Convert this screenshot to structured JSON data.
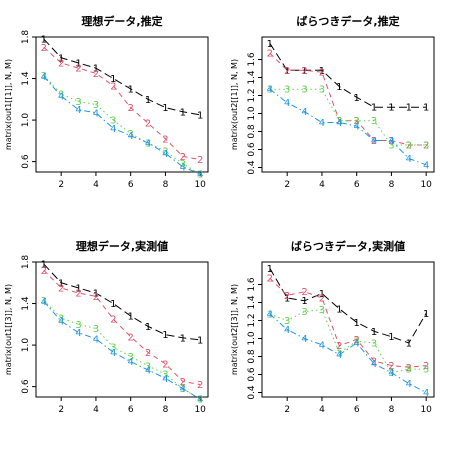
{
  "chart_data": [
    {
      "type": "line",
      "title": "理想データ,推定",
      "ylabel": "matrix(out1[[1]], N, M)",
      "xlabel": "",
      "x": [
        1,
        2,
        3,
        4,
        5,
        6,
        7,
        8,
        9,
        10
      ],
      "xticks": [
        2,
        4,
        6,
        8,
        10
      ],
      "yticks": [
        0.6,
        1.0,
        1.4,
        1.8
      ],
      "ylim": [
        0.5,
        1.8
      ],
      "series": [
        {
          "marker": "1",
          "color": "#000000",
          "dash": "8,4",
          "values": [
            1.78,
            1.6,
            1.55,
            1.5,
            1.4,
            1.3,
            1.2,
            1.12,
            1.08,
            1.05
          ]
        },
        {
          "marker": "2",
          "color": "#DF536B",
          "dash": "5,4",
          "values": [
            1.7,
            1.55,
            1.5,
            1.45,
            1.33,
            1.12,
            0.97,
            0.82,
            0.65,
            0.62
          ]
        },
        {
          "marker": "3",
          "color": "#61D04F",
          "dash": "1.5,3",
          "values": [
            1.43,
            1.25,
            1.18,
            1.15,
            1.0,
            0.87,
            0.78,
            0.7,
            0.58,
            0.48
          ]
        },
        {
          "marker": "4",
          "color": "#2297E6",
          "dash": "6,3,1.5,3",
          "values": [
            1.42,
            1.23,
            1.1,
            1.07,
            0.92,
            0.85,
            0.78,
            0.68,
            0.55,
            0.48
          ]
        }
      ]
    },
    {
      "type": "line",
      "title": "ばらつきデータ,推定",
      "ylabel": "matrix(out2[[1]], N, M)",
      "xlabel": "",
      "x": [
        1,
        2,
        3,
        4,
        5,
        6,
        7,
        8,
        9,
        10
      ],
      "xticks": [
        2,
        4,
        6,
        8,
        10
      ],
      "yticks": [
        0.4,
        0.6,
        0.8,
        1.0,
        1.2,
        1.4,
        1.6
      ],
      "ylim": [
        0.35,
        1.85
      ],
      "series": [
        {
          "marker": "1",
          "color": "#000000",
          "dash": "8,4",
          "values": [
            1.78,
            1.48,
            1.48,
            1.48,
            1.3,
            1.18,
            1.07,
            1.07,
            1.07,
            1.07
          ]
        },
        {
          "marker": "2",
          "color": "#DF536B",
          "dash": "5,4",
          "values": [
            1.67,
            1.48,
            1.48,
            1.46,
            0.92,
            0.92,
            0.7,
            0.7,
            0.65,
            0.65
          ]
        },
        {
          "marker": "3",
          "color": "#61D04F",
          "dash": "1.5,3",
          "values": [
            1.27,
            1.27,
            1.27,
            1.27,
            0.92,
            0.92,
            0.92,
            0.65,
            0.65,
            0.65
          ]
        },
        {
          "marker": "4",
          "color": "#2297E6",
          "dash": "6,3,1.5,3",
          "values": [
            1.27,
            1.12,
            1.02,
            0.9,
            0.9,
            0.86,
            0.7,
            0.7,
            0.5,
            0.43
          ]
        }
      ]
    },
    {
      "type": "line",
      "title": "理想データ,実測値",
      "ylabel": "matrix(out1[[3]], N, M)",
      "xlabel": "",
      "x": [
        1,
        2,
        3,
        4,
        5,
        6,
        7,
        8,
        9,
        10
      ],
      "xticks": [
        2,
        4,
        6,
        8,
        10
      ],
      "yticks": [
        0.6,
        1.0,
        1.4,
        1.8
      ],
      "ylim": [
        0.5,
        1.8
      ],
      "series": [
        {
          "marker": "1",
          "color": "#000000",
          "dash": "8,4",
          "values": [
            1.78,
            1.6,
            1.55,
            1.5,
            1.4,
            1.28,
            1.18,
            1.1,
            1.07,
            1.05
          ]
        },
        {
          "marker": "2",
          "color": "#DF536B",
          "dash": "5,4",
          "values": [
            1.72,
            1.55,
            1.5,
            1.47,
            1.25,
            1.08,
            0.93,
            0.82,
            0.65,
            0.62
          ]
        },
        {
          "marker": "3",
          "color": "#61D04F",
          "dash": "1.5,3",
          "values": [
            1.43,
            1.26,
            1.2,
            1.16,
            0.98,
            0.89,
            0.8,
            0.72,
            0.58,
            0.48
          ]
        },
        {
          "marker": "4",
          "color": "#2297E6",
          "dash": "6,3,1.5,3",
          "values": [
            1.42,
            1.23,
            1.12,
            1.06,
            0.93,
            0.84,
            0.76,
            0.68,
            0.58,
            0.48
          ]
        }
      ]
    },
    {
      "type": "line",
      "title": "ばらつきデータ,実測値",
      "ylabel": "matrix(out2[[3]], N, M)",
      "xlabel": "",
      "x": [
        1,
        2,
        3,
        4,
        5,
        6,
        7,
        8,
        9,
        10
      ],
      "xticks": [
        2,
        4,
        6,
        8,
        10
      ],
      "yticks": [
        0.4,
        0.6,
        0.8,
        1.0,
        1.2,
        1.4,
        1.6
      ],
      "ylim": [
        0.35,
        1.85
      ],
      "series": [
        {
          "marker": "1",
          "color": "#000000",
          "dash": "8,4",
          "values": [
            1.78,
            1.45,
            1.42,
            1.5,
            1.33,
            1.18,
            1.08,
            1.02,
            0.95,
            1.28
          ]
        },
        {
          "marker": "2",
          "color": "#DF536B",
          "dash": "5,4",
          "values": [
            1.67,
            1.48,
            1.52,
            1.45,
            0.92,
            0.99,
            0.75,
            0.7,
            0.68,
            0.7
          ]
        },
        {
          "marker": "3",
          "color": "#61D04F",
          "dash": "1.5,3",
          "values": [
            1.27,
            1.2,
            1.3,
            1.32,
            0.84,
            0.97,
            0.95,
            0.62,
            0.66,
            0.66
          ]
        },
        {
          "marker": "4",
          "color": "#2297E6",
          "dash": "6,3,1.5,3",
          "values": [
            1.27,
            1.1,
            1.0,
            0.93,
            0.82,
            0.95,
            0.72,
            0.62,
            0.5,
            0.4
          ]
        }
      ]
    }
  ]
}
